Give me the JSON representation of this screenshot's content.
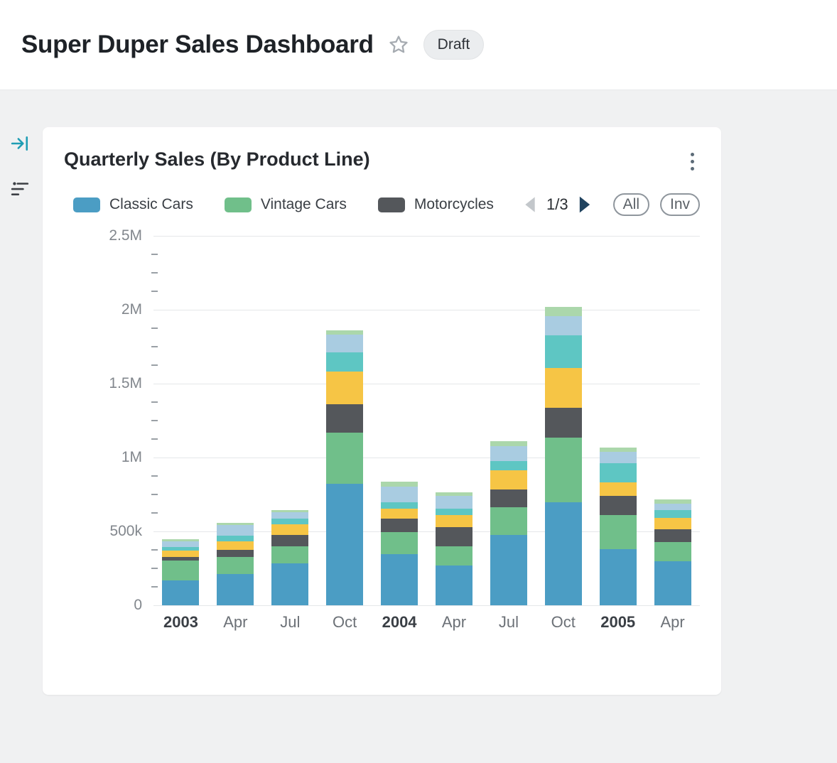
{
  "header": {
    "title": "Super Duper Sales Dashboard",
    "badge": "Draft"
  },
  "card": {
    "title": "Quarterly Sales (By Product Line)",
    "pagination": {
      "label": "1/3"
    },
    "filter_buttons": [
      {
        "label": "All"
      },
      {
        "label": "Inv"
      }
    ]
  },
  "chart_data": {
    "type": "bar",
    "stacked": true,
    "title": "Quarterly Sales (By Product Line)",
    "xlabel": "",
    "ylabel": "",
    "ylim": [
      0,
      2500000
    ],
    "grid": true,
    "legend_position": "top",
    "legend_page": "1/3",
    "y_minor_step": 125000,
    "y_ticks": [
      {
        "value": 0,
        "label": "0"
      },
      {
        "value": 500000,
        "label": "500k"
      },
      {
        "value": 1000000,
        "label": "1M"
      },
      {
        "value": 1500000,
        "label": "1.5M"
      },
      {
        "value": 2000000,
        "label": "2M"
      },
      {
        "value": 2500000,
        "label": "2.5M"
      }
    ],
    "categories": [
      "2003",
      "Apr",
      "Jul",
      "Oct",
      "2004",
      "Apr",
      "Jul",
      "Oct",
      "2005",
      "Apr"
    ],
    "category_emphasis": [
      true,
      false,
      false,
      false,
      true,
      false,
      false,
      false,
      true,
      false
    ],
    "series": [
      {
        "name": "Classic Cars",
        "color": "#4b9dc4",
        "in_legend": true,
        "values": [
          170000,
          210000,
          285000,
          820000,
          345000,
          270000,
          475000,
          695000,
          380000,
          300000
        ]
      },
      {
        "name": "Vintage Cars",
        "color": "#70bf8a",
        "in_legend": true,
        "values": [
          135000,
          115000,
          115000,
          350000,
          150000,
          130000,
          190000,
          440000,
          230000,
          130000
        ]
      },
      {
        "name": "Motorcycles",
        "color": "#54575b",
        "in_legend": true,
        "values": [
          20000,
          50000,
          75000,
          190000,
          90000,
          130000,
          120000,
          200000,
          130000,
          85000
        ]
      },
      {
        "name": "Unlabeled (yellow)",
        "color": "#f6c545",
        "in_legend": false,
        "values": [
          45000,
          60000,
          75000,
          220000,
          70000,
          80000,
          130000,
          270000,
          90000,
          75000
        ]
      },
      {
        "name": "Unlabeled (teal)",
        "color": "#5ec6c3",
        "in_legend": false,
        "values": [
          25000,
          35000,
          35000,
          130000,
          40000,
          45000,
          60000,
          220000,
          130000,
          55000
        ]
      },
      {
        "name": "Unlabeled (light blue)",
        "color": "#a9cce1",
        "in_legend": false,
        "values": [
          40000,
          75000,
          45000,
          120000,
          110000,
          85000,
          100000,
          130000,
          80000,
          45000
        ]
      },
      {
        "name": "Unlabeled (light green)",
        "color": "#abd7ab",
        "in_legend": false,
        "values": [
          10000,
          15000,
          15000,
          30000,
          30000,
          25000,
          35000,
          65000,
          30000,
          25000
        ]
      }
    ]
  }
}
